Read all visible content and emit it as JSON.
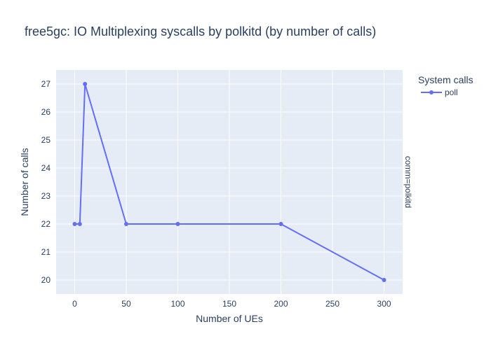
{
  "chart_data": {
    "type": "line",
    "title": "free5gc: IO Multiplexing syscalls by polkitd (by number of calls)",
    "xlabel": "Number of UEs",
    "ylabel": "Number of calls",
    "xlim": [
      -18,
      318
    ],
    "ylim": [
      19.5,
      27.5
    ],
    "x_ticks": [
      0,
      50,
      100,
      150,
      200,
      250,
      300
    ],
    "y_ticks": [
      20,
      21,
      22,
      23,
      24,
      25,
      26,
      27
    ],
    "grid": true,
    "legend": {
      "title": "System calls",
      "position": "top-right"
    },
    "facet_label": "comm=polkitd",
    "colors": {
      "plot_bg": "#e5ecf6",
      "grid": "#ffffff",
      "text": "#2a3f5f"
    },
    "series": [
      {
        "name": "poll",
        "color": "#636efa",
        "x": [
          0,
          5,
          10,
          50,
          100,
          200,
          300
        ],
        "y": [
          22,
          22,
          27,
          22,
          22,
          22,
          20
        ]
      }
    ]
  }
}
